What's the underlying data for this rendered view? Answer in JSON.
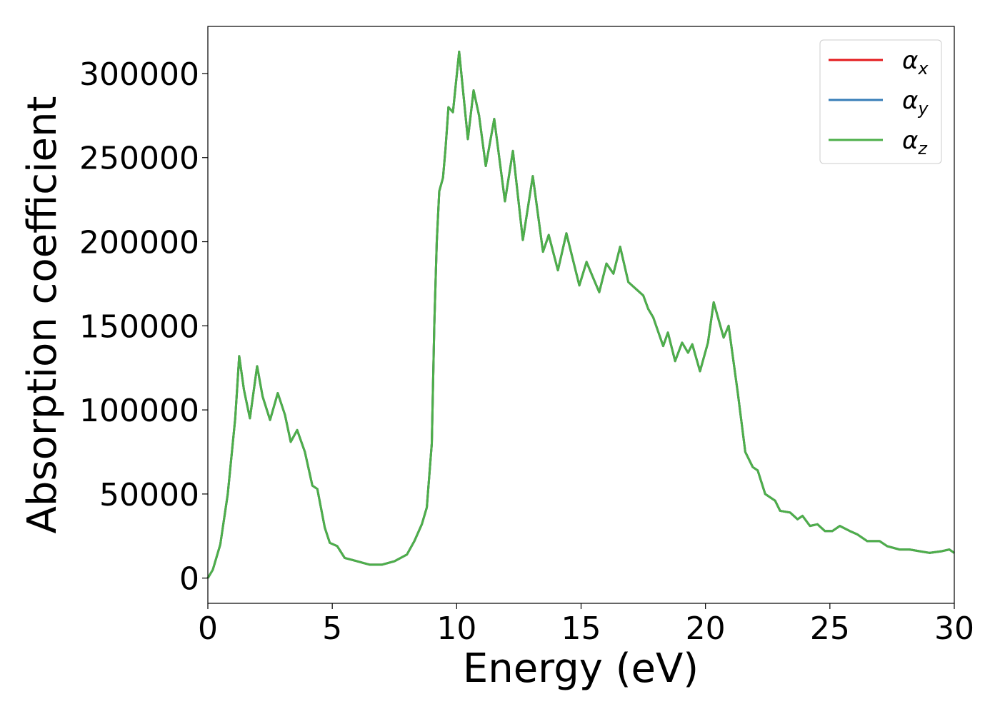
{
  "chart_data": {
    "type": "line",
    "xlabel": "Energy (eV)",
    "ylabel": "Absorption coefficient",
    "xlim": [
      0,
      30
    ],
    "ylim": [
      -15000,
      328000
    ],
    "xticks": [
      0,
      5,
      10,
      15,
      20,
      25,
      30
    ],
    "yticks": [
      0,
      50000,
      100000,
      150000,
      200000,
      250000,
      300000
    ],
    "legend": "upper right",
    "x": [
      0,
      0.2,
      0.5,
      0.8,
      1.0,
      1.1,
      1.26,
      1.45,
      1.69,
      1.98,
      2.2,
      2.5,
      2.81,
      3.1,
      3.33,
      3.59,
      3.9,
      4.2,
      4.4,
      4.7,
      4.9,
      5.2,
      5.5,
      6.0,
      6.5,
      7.0,
      7.5,
      8.0,
      8.3,
      8.6,
      8.8,
      9.0,
      9.1,
      9.2,
      9.3,
      9.45,
      9.55,
      9.67,
      9.85,
      10.1,
      10.45,
      10.68,
      10.9,
      11.17,
      11.51,
      11.94,
      12.26,
      12.66,
      13.06,
      13.47,
      13.7,
      14.07,
      14.41,
      14.93,
      15.22,
      15.5,
      15.73,
      16.02,
      16.3,
      16.57,
      16.9,
      17.2,
      17.5,
      17.7,
      17.9,
      18.3,
      18.49,
      18.78,
      19.06,
      19.3,
      19.47,
      19.78,
      20.1,
      20.33,
      20.73,
      20.93,
      21.3,
      21.6,
      21.9,
      22.1,
      22.4,
      22.8,
      23.0,
      23.4,
      23.7,
      23.9,
      24.2,
      24.5,
      24.8,
      25.1,
      25.4,
      25.8,
      26.1,
      26.5,
      27.0,
      27.3,
      27.8,
      28.2,
      28.6,
      29.0,
      29.5,
      29.8,
      30.0
    ],
    "series": [
      {
        "name": "αx",
        "color": "#e41a1c",
        "values": [
          0,
          5000,
          20000,
          50000,
          80000,
          95000,
          132000,
          112000,
          95000,
          126000,
          108000,
          94000,
          110000,
          97000,
          81000,
          88000,
          75000,
          55000,
          53000,
          30000,
          21000,
          19000,
          12000,
          10000,
          8000,
          8000,
          10000,
          14000,
          22000,
          32000,
          42000,
          80000,
          150000,
          200000,
          230000,
          238000,
          255000,
          280000,
          277000,
          313000,
          261000,
          290000,
          275000,
          245000,
          273000,
          224000,
          254000,
          201000,
          239000,
          194000,
          204000,
          183000,
          205000,
          174000,
          188000,
          178000,
          170000,
          187000,
          181000,
          197000,
          176000,
          172000,
          168000,
          160000,
          155000,
          138000,
          146000,
          129000,
          140000,
          134000,
          139000,
          123000,
          140000,
          164000,
          143000,
          150000,
          110000,
          75000,
          66000,
          64000,
          50000,
          46000,
          40000,
          39000,
          35000,
          37000,
          31000,
          32000,
          28000,
          28000,
          31000,
          28000,
          26000,
          22000,
          22000,
          19000,
          17000,
          17000,
          16000,
          15000,
          16000,
          17000,
          15000
        ]
      },
      {
        "name": "αy",
        "color": "#377eb8",
        "values": [
          0,
          5000,
          20000,
          50000,
          80000,
          95000,
          132000,
          112000,
          95000,
          126000,
          108000,
          94000,
          110000,
          97000,
          81000,
          88000,
          75000,
          55000,
          53000,
          30000,
          21000,
          19000,
          12000,
          10000,
          8000,
          8000,
          10000,
          14000,
          22000,
          32000,
          42000,
          80000,
          150000,
          200000,
          230000,
          238000,
          255000,
          280000,
          277000,
          313000,
          261000,
          290000,
          275000,
          245000,
          273000,
          224000,
          254000,
          201000,
          239000,
          194000,
          204000,
          183000,
          205000,
          174000,
          188000,
          178000,
          170000,
          187000,
          181000,
          197000,
          176000,
          172000,
          168000,
          160000,
          155000,
          138000,
          146000,
          129000,
          140000,
          134000,
          139000,
          123000,
          140000,
          164000,
          143000,
          150000,
          110000,
          75000,
          66000,
          64000,
          50000,
          46000,
          40000,
          39000,
          35000,
          37000,
          31000,
          32000,
          28000,
          28000,
          31000,
          28000,
          26000,
          22000,
          22000,
          19000,
          17000,
          17000,
          16000,
          15000,
          16000,
          17000,
          15000
        ]
      },
      {
        "name": "αz",
        "color": "#4daf4a",
        "values": [
          0,
          5000,
          20000,
          50000,
          80000,
          95000,
          132000,
          112000,
          95000,
          126000,
          108000,
          94000,
          110000,
          97000,
          81000,
          88000,
          75000,
          55000,
          53000,
          30000,
          21000,
          19000,
          12000,
          10000,
          8000,
          8000,
          10000,
          14000,
          22000,
          32000,
          42000,
          80000,
          150000,
          200000,
          230000,
          238000,
          255000,
          280000,
          277000,
          313000,
          261000,
          290000,
          275000,
          245000,
          273000,
          224000,
          254000,
          201000,
          239000,
          194000,
          204000,
          183000,
          205000,
          174000,
          188000,
          178000,
          170000,
          187000,
          181000,
          197000,
          176000,
          172000,
          168000,
          160000,
          155000,
          138000,
          146000,
          129000,
          140000,
          134000,
          139000,
          123000,
          140000,
          164000,
          143000,
          150000,
          110000,
          75000,
          66000,
          64000,
          50000,
          46000,
          40000,
          39000,
          35000,
          37000,
          31000,
          32000,
          28000,
          28000,
          31000,
          28000,
          26000,
          22000,
          22000,
          19000,
          17000,
          17000,
          16000,
          15000,
          16000,
          17000,
          15000
        ]
      }
    ]
  }
}
